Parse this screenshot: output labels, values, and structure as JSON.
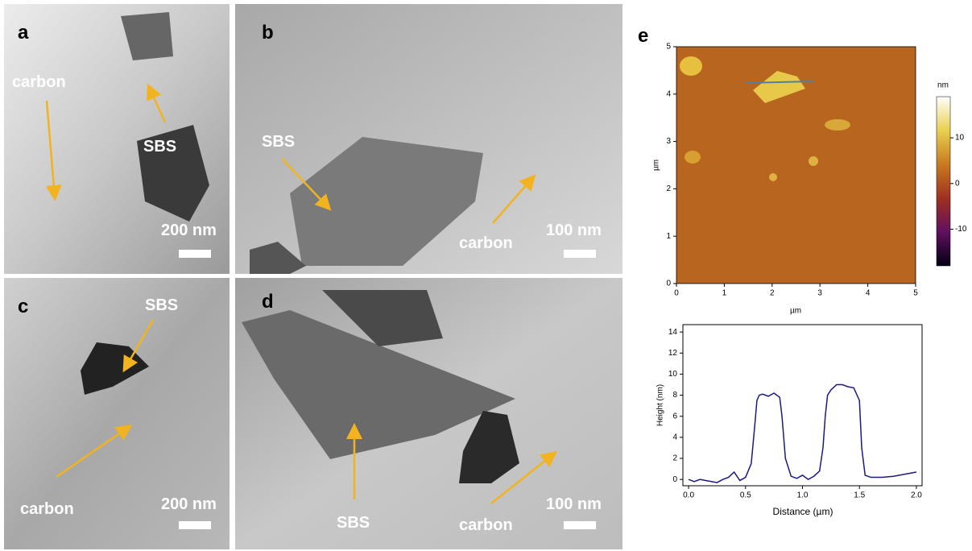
{
  "panels": [
    {
      "label": "a",
      "annotations": [
        "carbon",
        "SBS"
      ],
      "scale_bar": "200 nm"
    },
    {
      "label": "b",
      "annotations": [
        "SBS",
        "carbon"
      ],
      "scale_bar": "100 nm"
    },
    {
      "label": "c",
      "annotations": [
        "SBS",
        "carbon"
      ],
      "scale_bar": "200 nm"
    },
    {
      "label": "d",
      "annotations": [
        "SBS",
        "carbon"
      ],
      "scale_bar": "100 nm"
    }
  ],
  "afm_panel_label": "e",
  "chart_data": [
    {
      "type": "heatmap",
      "x_label": "µm",
      "y_label": "µm",
      "xlim": [
        0,
        5
      ],
      "ylim": [
        0,
        5
      ],
      "xticks": [
        0,
        1,
        2,
        3,
        4,
        5
      ],
      "yticks": [
        0,
        1,
        2,
        3,
        4,
        5
      ],
      "colorbar_label": "nm",
      "colorbar_lim": [
        -18,
        19
      ],
      "colorbar_ticks": [
        -10,
        0,
        10
      ]
    },
    {
      "type": "line",
      "x_label": "Distance (µm)",
      "y_label": "Height (nm)",
      "x": [
        0,
        0.05,
        0.1,
        0.15,
        0.2,
        0.25,
        0.3,
        0.35,
        0.4,
        0.45,
        0.5,
        0.55,
        0.58,
        0.6,
        0.62,
        0.65,
        0.7,
        0.75,
        0.8,
        0.82,
        0.85,
        0.9,
        0.95,
        1.0,
        1.05,
        1.1,
        1.15,
        1.18,
        1.2,
        1.22,
        1.25,
        1.3,
        1.35,
        1.4,
        1.45,
        1.5,
        1.52,
        1.55,
        1.6,
        1.7,
        1.8,
        1.9,
        2.0
      ],
      "series": [
        {
          "color": "#1a1a80",
          "values": [
            0,
            -0.2,
            0,
            -0.1,
            -0.2,
            -0.3,
            0,
            0.2,
            0.7,
            -0.1,
            0.2,
            1.5,
            5,
            7.5,
            8,
            8.1,
            7.9,
            8.2,
            7.8,
            6,
            2,
            0.3,
            0.1,
            0.4,
            0,
            0.3,
            0.8,
            3,
            6,
            8,
            8.5,
            9,
            9,
            8.8,
            8.7,
            7.5,
            3,
            0.4,
            0.2,
            0.2,
            0.3,
            0.5,
            0.7
          ]
        }
      ],
      "xlim": [
        -0.05,
        2.05
      ],
      "ylim": [
        -0.6,
        14.7
      ],
      "xticks": [
        {
          "value": 0,
          "label": "0.0"
        },
        {
          "value": 0.5,
          "label": "0.5"
        },
        {
          "value": 1,
          "label": "1.0"
        },
        {
          "value": 1.5,
          "label": "1.5"
        },
        {
          "value": 2,
          "label": "2.0"
        }
      ],
      "yticks": [
        0,
        2,
        4,
        6,
        8,
        10,
        12,
        14
      ]
    }
  ]
}
